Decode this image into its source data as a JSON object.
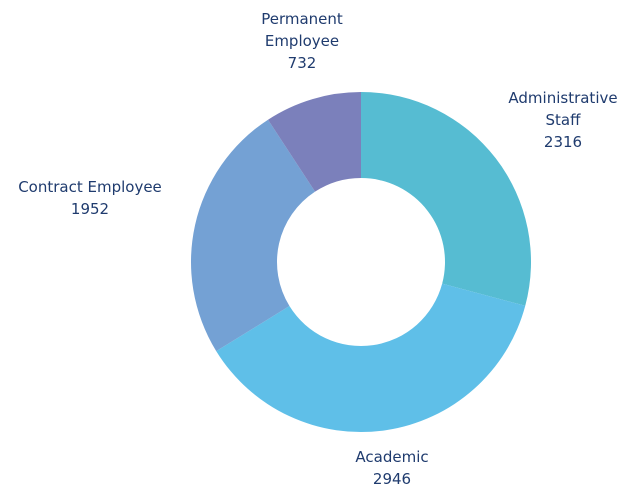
{
  "chart_data": {
    "type": "donut",
    "categories": [
      "Administrative Staff",
      "Academic",
      "Contract Employee",
      "Permanent Employee"
    ],
    "values": [
      2316,
      2946,
      1952,
      732
    ],
    "colors": [
      "#56bcd2",
      "#5fbfe8",
      "#74a1d4",
      "#7b80bb"
    ]
  }
}
